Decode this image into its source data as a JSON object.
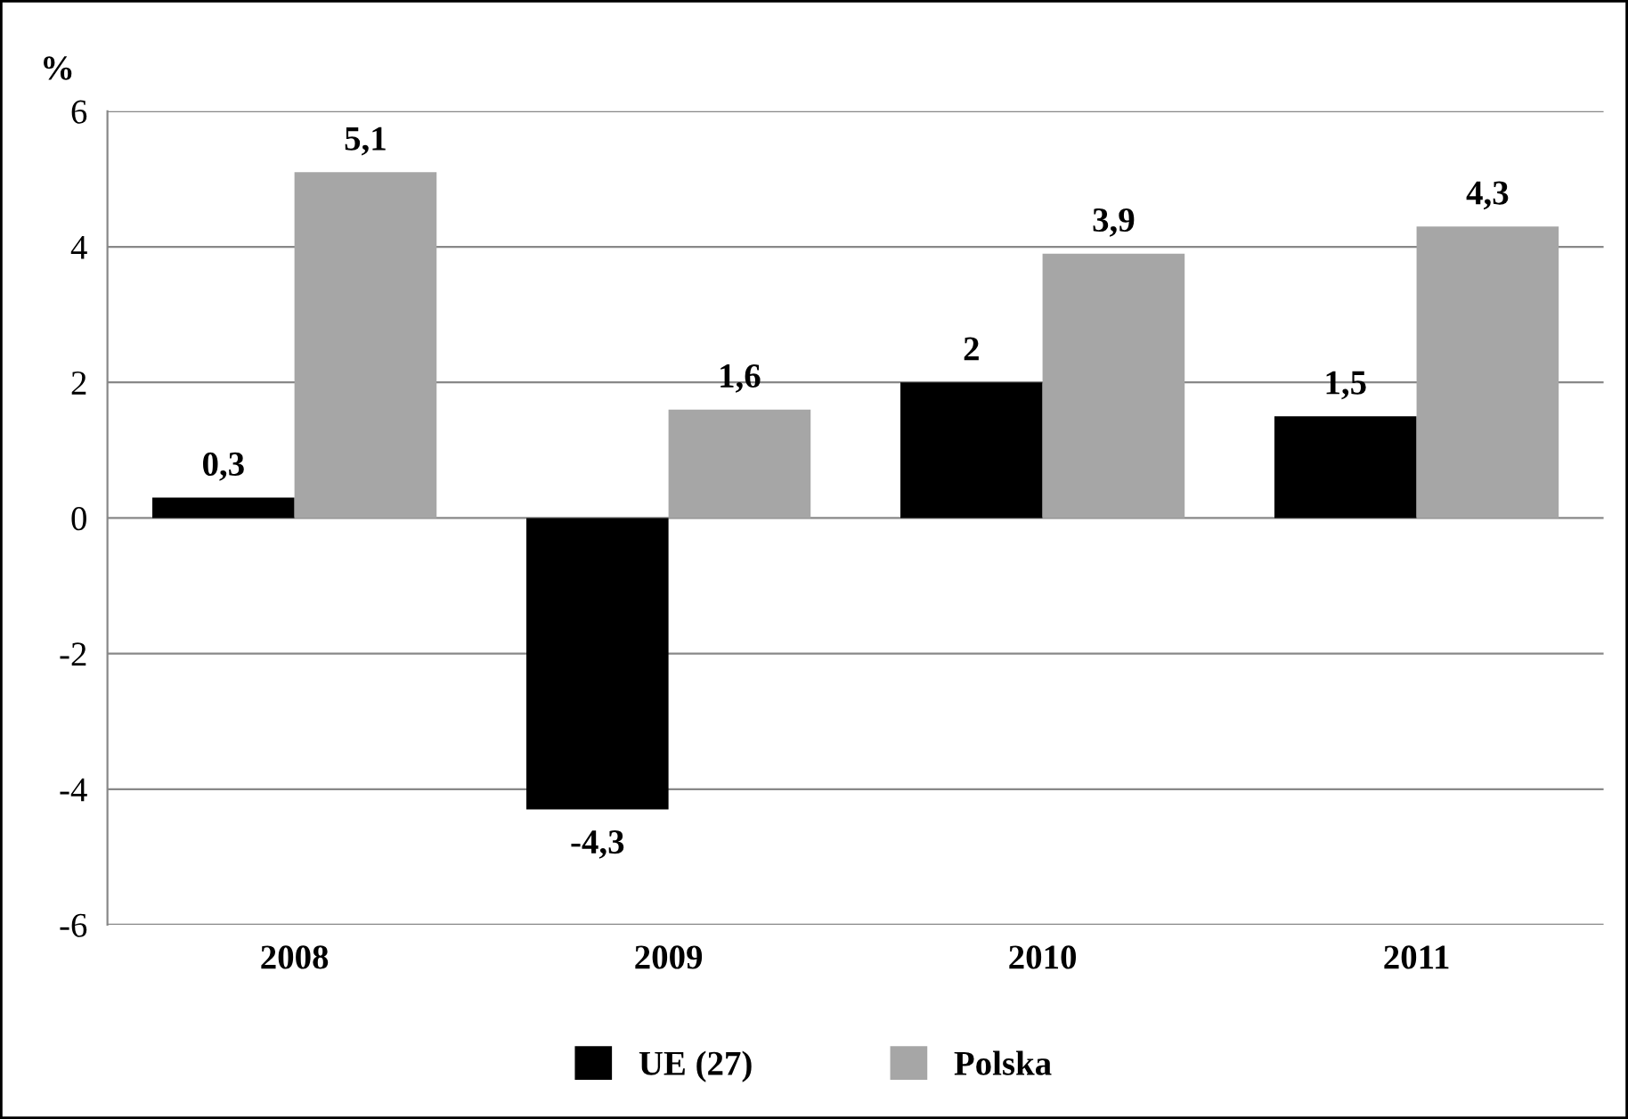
{
  "chart_data": {
    "type": "bar",
    "ylabel": "%",
    "categories": [
      "2008",
      "2009",
      "2010",
      "2011"
    ],
    "series": [
      {
        "name": "UE (27)",
        "color": "#000000",
        "values": [
          0.3,
          -4.3,
          2,
          1.5
        ],
        "value_labels": [
          "0,3",
          "-4,3",
          "2",
          "1,5"
        ]
      },
      {
        "name": "Polska",
        "color": "#a6a6a6",
        "values": [
          5.1,
          1.6,
          3.9,
          4.3
        ],
        "value_labels": [
          "5,1",
          "1,6",
          "3,9",
          "4,3"
        ]
      }
    ],
    "ylim": [
      -6,
      6
    ],
    "yticks": [
      {
        "value": -6,
        "label": "-6"
      },
      {
        "value": -4,
        "label": "-4"
      },
      {
        "value": -2,
        "label": "-2"
      },
      0,
      2,
      4,
      6
    ],
    "grid": "y",
    "legend": "bottom"
  }
}
